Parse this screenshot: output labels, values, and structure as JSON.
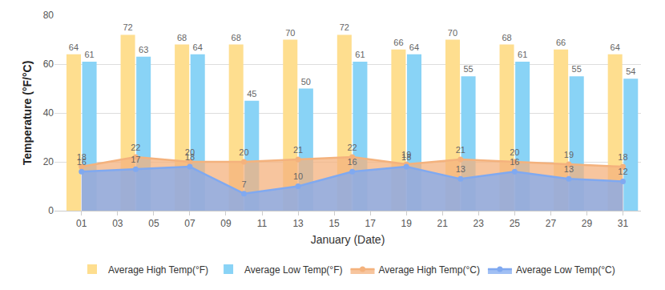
{
  "chart_data": {
    "type": "bar",
    "xlabel": "January (Date)",
    "ylabel": "Temperature (°F/°C)",
    "x": [
      1,
      4,
      7,
      10,
      13,
      16,
      19,
      22,
      25,
      28,
      31
    ],
    "series": [
      {
        "name": "Average High Temp(°F)",
        "type": "bar",
        "color": "#fede8f",
        "values": [
          64,
          72,
          68,
          68,
          70,
          72,
          66,
          70,
          68,
          66,
          64
        ]
      },
      {
        "name": "Average Low Temp(°F)",
        "type": "bar",
        "color": "#89d3f6",
        "values": [
          61,
          63,
          64,
          45,
          50,
          61,
          64,
          55,
          61,
          55,
          54
        ]
      },
      {
        "name": "Average High Temp(°C)",
        "type": "area",
        "color": "#f4b27d",
        "marker": "circle",
        "values": [
          18,
          22,
          20,
          20,
          21,
          22,
          19,
          21,
          20,
          19,
          18
        ]
      },
      {
        "name": "Average Low Temp(°C)",
        "type": "area",
        "color": "#80a9f0",
        "marker": "circle",
        "values": [
          16,
          17,
          18,
          7,
          10,
          16,
          18,
          13,
          16,
          13,
          12
        ]
      }
    ],
    "xlim": [
      -0.5,
      32
    ],
    "xticks": [
      {
        "value": 1,
        "label": "01"
      },
      {
        "value": 3,
        "label": "03"
      },
      {
        "value": 5,
        "label": "05"
      },
      {
        "value": 7,
        "label": "07"
      },
      {
        "value": 9,
        "label": "09"
      },
      {
        "value": 11,
        "label": "11"
      },
      {
        "value": 13,
        "label": "13"
      },
      {
        "value": 15,
        "label": "15"
      },
      {
        "value": 17,
        "label": "17"
      },
      {
        "value": 19,
        "label": "19"
      },
      {
        "value": 21,
        "label": "21"
      },
      {
        "value": 23,
        "label": "23"
      },
      {
        "value": 25,
        "label": "25"
      },
      {
        "value": 27,
        "label": "27"
      },
      {
        "value": 29,
        "label": "29"
      },
      {
        "value": 31,
        "label": "31"
      }
    ],
    "ylim": [
      0,
      80
    ],
    "yticks": [
      0,
      20,
      40,
      60,
      80
    ],
    "grid": true,
    "legend": "bottom",
    "data_labels": true
  }
}
